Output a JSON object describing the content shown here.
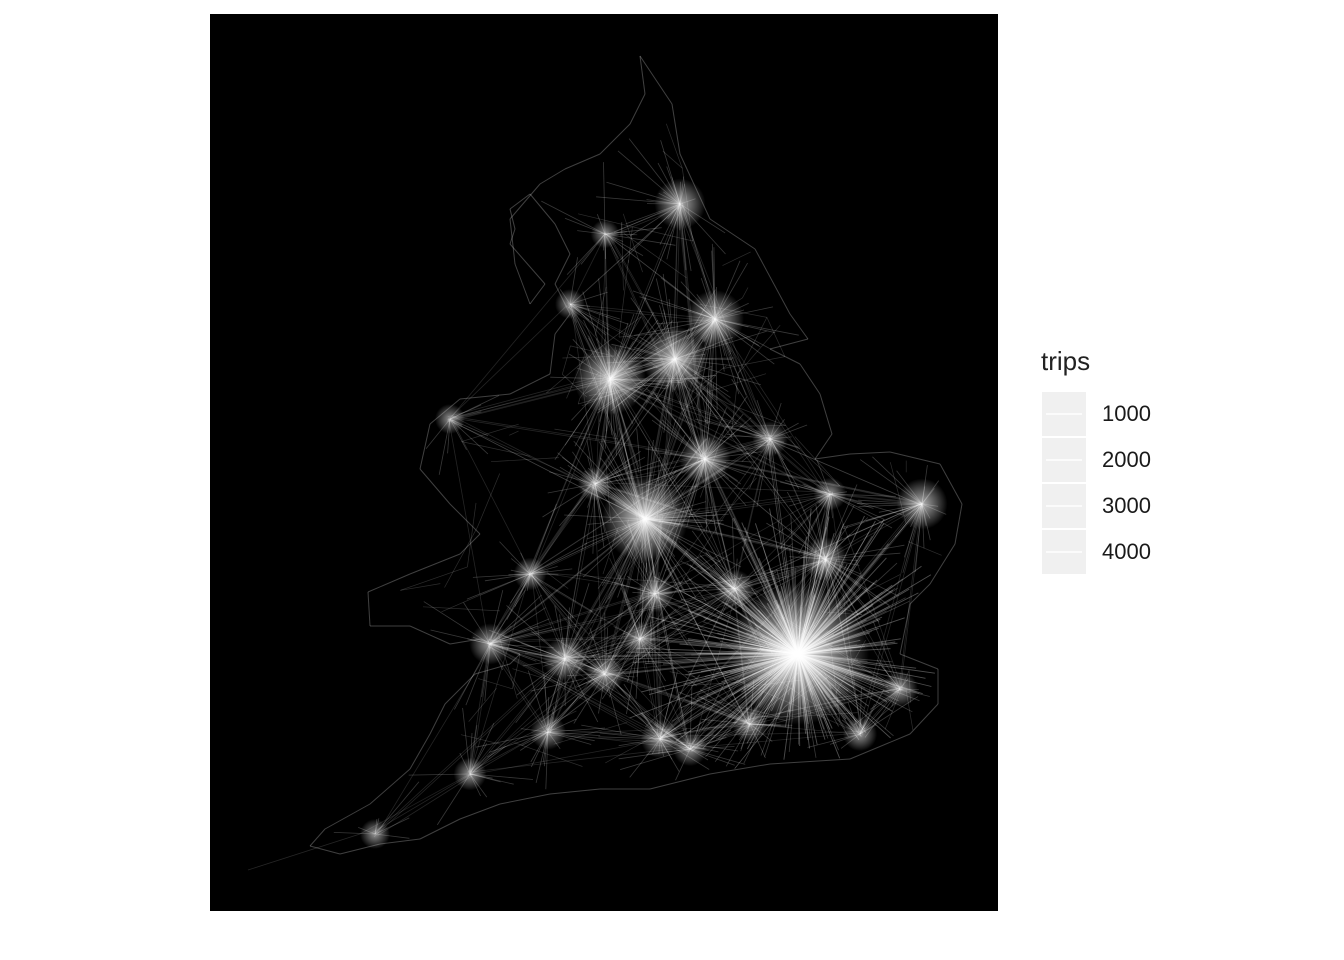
{
  "chart_data": {
    "type": "map",
    "description_kind": "origin-destination flow lines",
    "legend": {
      "title": "trips",
      "entries": [
        "1000",
        "2000",
        "3000",
        "4000"
      ]
    },
    "colors": {
      "background": "#000000",
      "lines": "#ffffff",
      "legend_key": "#f0f0f0"
    }
  }
}
